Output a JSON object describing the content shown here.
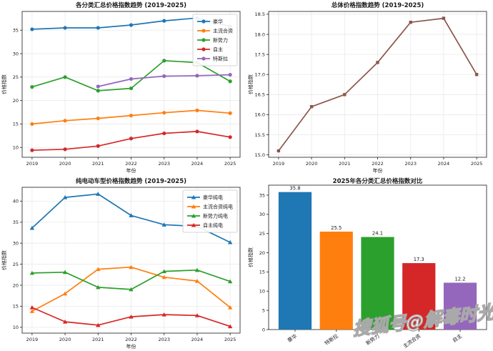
{
  "watermark": {
    "text": "搜狐号@解毒时光"
  },
  "axis_text": {
    "xlabel": "年份",
    "ylabel": "价格指数"
  },
  "palette": {
    "blue": "#1f77b4",
    "orange": "#ff7f0e",
    "green": "#2ca02c",
    "red": "#d62728",
    "purple": "#9467bd",
    "brown": "#8c564b",
    "grid": "#e9e9e9",
    "spine": "#333333",
    "text": "#1a1a1a"
  },
  "chart_data": [
    {
      "id": "category-index-trend",
      "type": "line",
      "title": "各分类汇总价格指数趋势 (2019-2025)",
      "xlabel": "年份",
      "ylabel": "价格指数",
      "x": [
        2019,
        2020,
        2021,
        2022,
        2023,
        2024,
        2025
      ],
      "xtick_labels": [
        "2019",
        "2020",
        "2021",
        "2022",
        "2023",
        "2024",
        "2025"
      ],
      "ytick_values": [
        10,
        15,
        20,
        25,
        30,
        35
      ],
      "ytick_labels": [
        "10",
        "15",
        "20",
        "25",
        "30",
        "35"
      ],
      "ylim": [
        7.9,
        39.0
      ],
      "grid": true,
      "legend": true,
      "legend_position": "upper right",
      "marker": "circle",
      "series": [
        {
          "name": "豪华",
          "color": "#1f77b4",
          "values": [
            35.2,
            35.5,
            35.5,
            36.1,
            37.0,
            37.6,
            35.8
          ]
        },
        {
          "name": "主流合资",
          "color": "#ff7f0e",
          "values": [
            15.0,
            15.7,
            16.2,
            16.8,
            17.4,
            17.9,
            17.3
          ]
        },
        {
          "name": "新势力",
          "color": "#2ca02c",
          "values": [
            22.9,
            25.0,
            22.1,
            22.6,
            28.5,
            28.1,
            24.1
          ]
        },
        {
          "name": "自主",
          "color": "#d62728",
          "values": [
            9.4,
            9.6,
            10.3,
            11.9,
            13.0,
            13.4,
            12.2
          ]
        },
        {
          "name": "特斯拉",
          "color": "#9467bd",
          "values": [
            null,
            null,
            23.0,
            24.6,
            25.2,
            25.3,
            25.5
          ]
        }
      ]
    },
    {
      "id": "overall-index-trend",
      "type": "line",
      "title": "总体价格指数趋势 (2019-2025)",
      "xlabel": "年份",
      "ylabel": "价格指数",
      "x": [
        2019,
        2020,
        2021,
        2022,
        2023,
        2024,
        2025
      ],
      "xtick_labels": [
        "2019",
        "2020",
        "2021",
        "2022",
        "2023",
        "2024",
        "2025"
      ],
      "ytick_values": [
        15.0,
        15.5,
        16.0,
        16.5,
        17.0,
        17.5,
        18.0,
        18.5
      ],
      "ytick_labels": [
        "15.0",
        "15.5",
        "16.0",
        "16.5",
        "17.0",
        "17.5",
        "18.0",
        "18.5"
      ],
      "ylim": [
        14.94,
        18.57
      ],
      "grid": true,
      "legend": false,
      "legend_position": "none",
      "marker": "square",
      "series": [
        {
          "name": "总体",
          "color": "#8c564b",
          "values": [
            15.1,
            16.2,
            16.5,
            17.3,
            18.3,
            18.4,
            17.0
          ]
        }
      ]
    },
    {
      "id": "ev-index-trend",
      "type": "line",
      "title": "纯电动车型价格指数趋势 (2019-2025)",
      "xlabel": "年份",
      "ylabel": "价格指数",
      "x": [
        2019,
        2020,
        2021,
        2022,
        2023,
        2024,
        2025
      ],
      "xtick_labels": [
        "2019",
        "2020",
        "2021",
        "2022",
        "2023",
        "2024",
        "2025"
      ],
      "ytick_values": [
        10,
        15,
        20,
        25,
        30,
        35,
        40
      ],
      "ytick_labels": [
        "10",
        "15",
        "20",
        "25",
        "30",
        "35",
        "40"
      ],
      "ylim": [
        8.6,
        43.3
      ],
      "grid": true,
      "legend": true,
      "legend_position": "upper right",
      "marker": "triangle",
      "series": [
        {
          "name": "豪华纯电",
          "color": "#1f77b4",
          "values": [
            33.6,
            40.9,
            41.7,
            36.6,
            34.4,
            34.0,
            30.2
          ]
        },
        {
          "name": "主流合资纯电",
          "color": "#ff7f0e",
          "values": [
            13.8,
            18.0,
            23.8,
            24.3,
            21.9,
            21.0,
            14.7
          ]
        },
        {
          "name": "新势力纯电",
          "color": "#2ca02c",
          "values": [
            22.9,
            23.1,
            19.5,
            19.0,
            23.3,
            23.6,
            20.9
          ]
        },
        {
          "name": "自主纯电",
          "color": "#d62728",
          "values": [
            14.7,
            11.3,
            10.5,
            12.5,
            13.0,
            12.8,
            10.2
          ]
        }
      ]
    },
    {
      "id": "comparison-2025",
      "type": "bar",
      "title": "2025年各分类汇总价格指数对比",
      "xlabel": "",
      "ylabel": "价格指数",
      "categories": [
        "豪华",
        "特斯拉",
        "新势力",
        "主流合资",
        "自主"
      ],
      "values": [
        35.8,
        25.5,
        24.1,
        17.3,
        12.2
      ],
      "bar_labels": [
        "35.8",
        "25.5",
        "24.1",
        "17.3",
        "12.2"
      ],
      "colors": [
        "#1f77b4",
        "#ff7f0e",
        "#2ca02c",
        "#d62728",
        "#9467bd"
      ],
      "ytick_values": [
        0,
        5,
        10,
        15,
        20,
        25,
        30,
        35
      ],
      "ytick_labels": [
        "0",
        "5",
        "10",
        "15",
        "20",
        "25",
        "30",
        "35"
      ],
      "ylim": [
        0,
        37.6
      ],
      "grid": false,
      "legend": false,
      "xtick_rotation": -35
    }
  ]
}
